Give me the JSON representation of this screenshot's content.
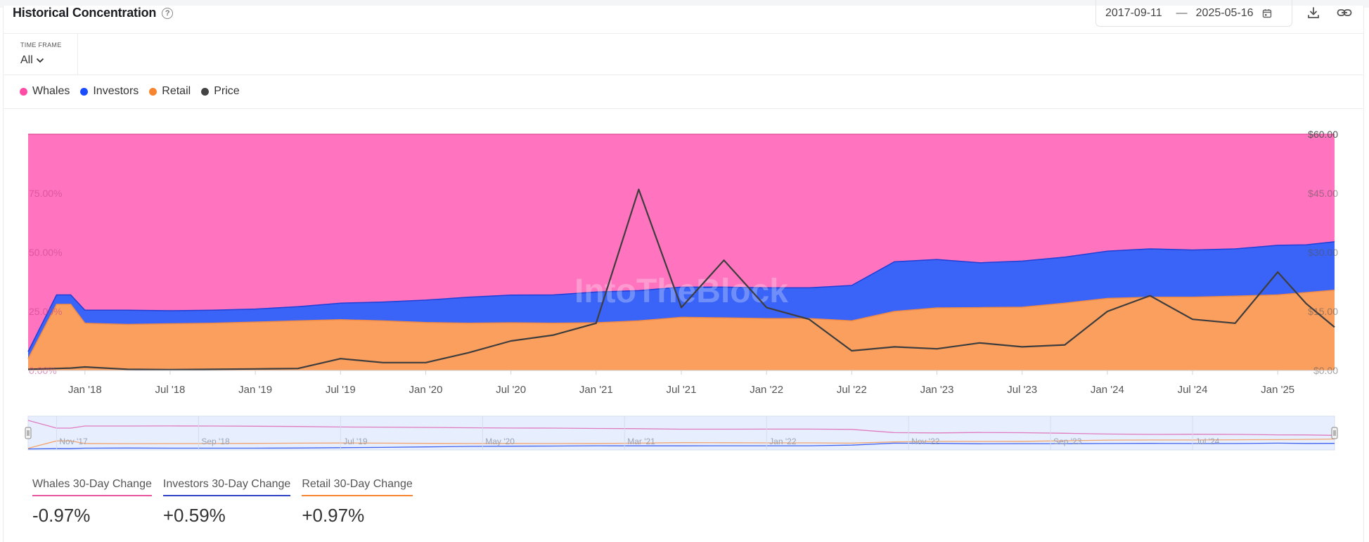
{
  "header": {
    "title": "Historical Concentration",
    "help_glyph": "?",
    "date_from": "2017-09-11",
    "date_sep": "—",
    "date_to": "2025-05-16"
  },
  "timeframe": {
    "label": "TIME FRAME",
    "value": "All"
  },
  "legend": [
    {
      "name": "Whales",
      "color": "#ff73bf"
    },
    {
      "name": "Investors",
      "color": "#2255ff"
    },
    {
      "name": "Retail",
      "color": "#f7842e"
    },
    {
      "name": "Price",
      "color": "#444444"
    }
  ],
  "watermark": "IntoTheBlock",
  "chart_data": {
    "type": "area",
    "stacked": true,
    "y_left": {
      "ticks": [
        "0.00%",
        "25.00%",
        "50.00%",
        "75.00%"
      ],
      "range": [
        0,
        100
      ]
    },
    "y_right": {
      "ticks": [
        "$0.00",
        "$15.00",
        "$30.00",
        "$45.00",
        "$60.00"
      ],
      "range": [
        0,
        60
      ]
    },
    "x_ticks": [
      "Jan '18",
      "Jul '18",
      "Jan '19",
      "Jul '19",
      "Jan '20",
      "Jul '20",
      "Jan '21",
      "Jul '21",
      "Jan '22",
      "Jul '22",
      "Jan '23",
      "Jul '23",
      "Jan '24",
      "Jul '24",
      "Jan '25"
    ],
    "navigator_ticks": [
      "Nov '17",
      "Sep '18",
      "Jul '19",
      "May '20",
      "Mar '21",
      "Jan '22",
      "Nov '22",
      "Sep '23",
      "Jul '24"
    ],
    "x": [
      "2017-09",
      "2017-11",
      "2017-12",
      "2018-01",
      "2018-04",
      "2018-07",
      "2018-10",
      "2019-01",
      "2019-04",
      "2019-07",
      "2019-10",
      "2020-01",
      "2020-04",
      "2020-07",
      "2020-10",
      "2021-01",
      "2021-04",
      "2021-07",
      "2021-10",
      "2022-01",
      "2022-04",
      "2022-07",
      "2022-10",
      "2023-01",
      "2023-04",
      "2023-07",
      "2023-10",
      "2024-01",
      "2024-04",
      "2024-07",
      "2024-10",
      "2025-01",
      "2025-03",
      "2025-05"
    ],
    "series": [
      {
        "name": "Retail",
        "values": [
          5,
          28,
          28,
          20,
          19.5,
          19.8,
          20,
          20.5,
          21,
          21.5,
          21,
          20.3,
          20,
          20.2,
          20,
          20.2,
          21,
          22.5,
          22.3,
          22,
          22,
          21,
          25,
          26.5,
          26.6,
          26.8,
          28.5,
          30.5,
          31,
          31,
          31.5,
          32,
          33,
          34
        ]
      },
      {
        "name": "Investors",
        "values": [
          3,
          4,
          4,
          5.5,
          6,
          5.5,
          5.5,
          5.5,
          6,
          7,
          8,
          9.5,
          11,
          11.7,
          12,
          13,
          12.8,
          12.8,
          13,
          13,
          13,
          15,
          21,
          20.5,
          19,
          19.5,
          19.5,
          20,
          20.5,
          20,
          20,
          21,
          20.2,
          20.5
        ]
      },
      {
        "name": "Whales",
        "values": [
          92,
          68,
          68,
          74.5,
          74.5,
          74.7,
          74.5,
          74,
          73,
          71.5,
          71,
          70.2,
          69,
          68.1,
          68,
          66.8,
          66.2,
          64.7,
          64.7,
          65,
          65,
          64,
          54,
          53,
          54.4,
          53.7,
          52,
          49.5,
          48.5,
          49,
          48.5,
          47,
          46.8,
          45.5
        ]
      },
      {
        "name": "Price",
        "axis": "right",
        "values": [
          0.3,
          0.5,
          0.6,
          0.9,
          0.3,
          0.2,
          0.3,
          0.4,
          0.5,
          3,
          2,
          2,
          4.5,
          7.5,
          9,
          12,
          46,
          16,
          28,
          16,
          13,
          5,
          6,
          5.5,
          7,
          6,
          6.5,
          15,
          19,
          13,
          12,
          25,
          17,
          11
        ]
      }
    ]
  },
  "stats": [
    {
      "label": "Whales 30-Day Change",
      "value": "-0.97%",
      "color": "#e6559e"
    },
    {
      "label": "Investors 30-Day Change",
      "value": "+0.59%",
      "color": "#2f44c4"
    },
    {
      "label": "Retail 30-Day Change",
      "value": "+0.97%",
      "color": "#f7842e"
    }
  ]
}
